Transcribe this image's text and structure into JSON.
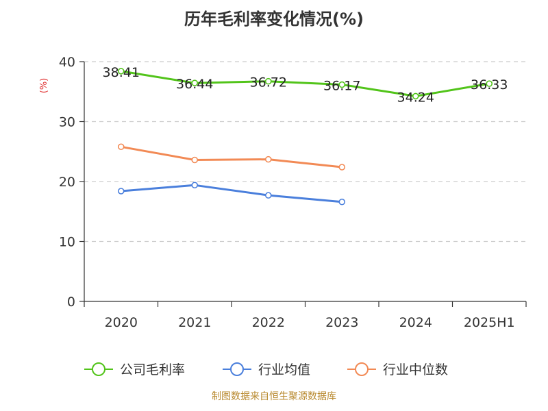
{
  "title": "历年毛利率变化情况(%)",
  "source": "制图数据来自恒生聚源数据库",
  "chart_data": {
    "type": "line",
    "title": "历年毛利率变化情况(%)",
    "ylabel": "(%)",
    "ylim": [
      0,
      40
    ],
    "yticks": [
      0,
      10,
      20,
      30,
      40
    ],
    "categories": [
      "2020",
      "2021",
      "2022",
      "2023",
      "2024",
      "2025H1"
    ],
    "grid": true,
    "legend_position": "bottom",
    "series": [
      {
        "name": "公司毛利率",
        "color": "#52c41a",
        "values": [
          38.41,
          36.44,
          36.72,
          36.17,
          34.24,
          36.33
        ],
        "labels": [
          "38.41",
          "36.44",
          "36.72",
          "36.17",
          "34.24",
          "36.33"
        ]
      },
      {
        "name": "行业均值",
        "color": "#4a7fdc",
        "values": [
          18.4,
          19.4,
          17.7,
          16.6,
          null,
          null
        ]
      },
      {
        "name": "行业中位数",
        "color": "#f28a55",
        "values": [
          25.8,
          23.6,
          23.7,
          22.4,
          null,
          null
        ]
      }
    ]
  }
}
